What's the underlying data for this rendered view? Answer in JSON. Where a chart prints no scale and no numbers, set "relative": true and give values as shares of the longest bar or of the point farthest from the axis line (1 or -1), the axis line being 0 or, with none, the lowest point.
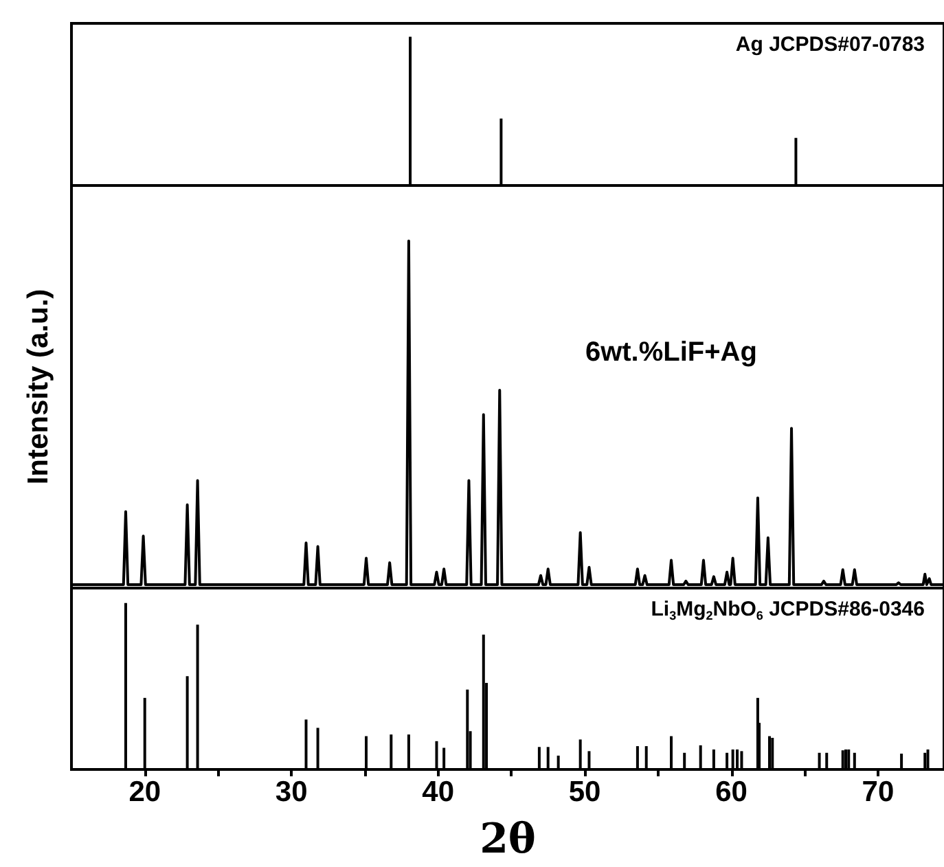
{
  "chart_data": [
    {
      "type": "bar",
      "relative": true,
      "xlim": [
        15,
        74.5
      ],
      "tick_labels": false,
      "series": [
        {
          "name": "Ag JCPDS#07-0783",
          "color": "#000000",
          "x": [
            38.1,
            44.3,
            64.4
          ],
          "values": [
            1.0,
            0.45,
            0.32
          ]
        }
      ]
    },
    {
      "type": "line",
      "relative": true,
      "xlim": [
        15,
        74.5
      ],
      "tick_labels": false,
      "ylabel": "Intensity (a.u.)",
      "marker": "none",
      "line_style": "solid",
      "series": [
        {
          "name": "6wt.%LiF+Ag",
          "color": "#000000",
          "x": [
            15,
            18.55,
            18.7,
            18.85,
            19.75,
            19.9,
            20.05,
            22.75,
            22.9,
            23.05,
            23.45,
            23.6,
            23.75,
            30.85,
            31.0,
            31.15,
            31.65,
            31.8,
            31.95,
            34.95,
            35.1,
            35.25,
            36.55,
            36.7,
            36.85,
            37.85,
            38.0,
            38.15,
            39.75,
            39.9,
            40.05,
            40.25,
            40.4,
            40.55,
            41.95,
            42.1,
            42.25,
            42.95,
            43.1,
            43.25,
            44.05,
            44.2,
            44.35,
            46.85,
            47.0,
            47.15,
            47.35,
            47.5,
            47.65,
            49.55,
            49.7,
            49.85,
            50.15,
            50.3,
            50.45,
            53.45,
            53.6,
            53.75,
            53.95,
            54.1,
            54.25,
            55.75,
            55.9,
            56.05,
            56.75,
            56.9,
            57.05,
            57.95,
            58.1,
            58.25,
            58.65,
            58.8,
            58.95,
            59.55,
            59.7,
            59.85,
            59.95,
            60.1,
            60.25,
            61.65,
            61.8,
            61.95,
            62.35,
            62.5,
            62.65,
            63.95,
            64.1,
            64.25,
            66.15,
            66.3,
            66.45,
            67.45,
            67.6,
            67.75,
            68.25,
            68.4,
            68.55,
            71.25,
            71.4,
            71.55,
            73.08,
            73.2,
            73.32,
            73.38,
            73.5,
            73.62,
            74.5
          ],
          "values": [
            0.01,
            0.01,
            0.22,
            0.01,
            0.01,
            0.15,
            0.01,
            0.01,
            0.24,
            0.01,
            0.01,
            0.31,
            0.01,
            0.01,
            0.13,
            0.01,
            0.01,
            0.12,
            0.01,
            0.01,
            0.086,
            0.01,
            0.01,
            0.073,
            0.01,
            0.01,
            1.0,
            0.01,
            0.01,
            0.046,
            0.01,
            0.01,
            0.055,
            0.01,
            0.01,
            0.31,
            0.01,
            0.01,
            0.5,
            0.01,
            0.01,
            0.57,
            0.01,
            0.01,
            0.036,
            0.01,
            0.01,
            0.055,
            0.01,
            0.01,
            0.16,
            0.01,
            0.01,
            0.06,
            0.01,
            0.01,
            0.055,
            0.01,
            0.01,
            0.036,
            0.01,
            0.01,
            0.08,
            0.01,
            0.01,
            0.02,
            0.01,
            0.01,
            0.08,
            0.01,
            0.01,
            0.033,
            0.01,
            0.01,
            0.046,
            0.01,
            0.01,
            0.086,
            0.01,
            0.01,
            0.26,
            0.01,
            0.01,
            0.145,
            0.01,
            0.01,
            0.46,
            0.01,
            0.01,
            0.02,
            0.01,
            0.01,
            0.053,
            0.01,
            0.01,
            0.053,
            0.01,
            0.01,
            0.015,
            0.01,
            0.01,
            0.04,
            0.01,
            0.01,
            0.027,
            0.01,
            0.01
          ]
        }
      ]
    },
    {
      "type": "bar",
      "relative": true,
      "xlim": [
        15,
        74.5
      ],
      "tick_labels": "x",
      "xlabel": "2θ",
      "xticks": [
        20,
        {
          "value": 25,
          "label": null
        },
        30,
        {
          "value": 35,
          "label": null
        },
        40,
        {
          "value": 45,
          "label": null
        },
        50,
        {
          "value": 55,
          "label": null
        },
        60,
        {
          "value": 65,
          "label": null
        },
        70
      ],
      "series": [
        {
          "name": "Li$_{3}$Mg$_{2}$NbO$_{6}$ JCPDS#86-0346",
          "color": "#000000",
          "x": [
            18.7,
            20.0,
            22.9,
            23.6,
            31.0,
            31.8,
            35.1,
            36.8,
            38.0,
            39.9,
            40.4,
            42.0,
            42.2,
            43.1,
            43.3,
            46.9,
            47.5,
            48.2,
            49.7,
            50.3,
            53.6,
            54.2,
            55.9,
            56.8,
            57.9,
            58.8,
            59.7,
            60.1,
            60.4,
            60.7,
            61.8,
            61.9,
            62.6,
            62.8,
            66.0,
            66.5,
            67.6,
            67.8,
            68.0,
            68.4,
            71.6,
            73.2,
            73.4
          ],
          "values": [
            1.0,
            0.43,
            0.56,
            0.87,
            0.3,
            0.25,
            0.2,
            0.21,
            0.21,
            0.17,
            0.13,
            0.48,
            0.23,
            0.81,
            0.52,
            0.135,
            0.135,
            0.083,
            0.18,
            0.11,
            0.14,
            0.14,
            0.2,
            0.1,
            0.145,
            0.12,
            0.1,
            0.12,
            0.12,
            0.11,
            0.43,
            0.28,
            0.2,
            0.19,
            0.1,
            0.1,
            0.115,
            0.12,
            0.12,
            0.1,
            0.095,
            0.1,
            0.12
          ]
        }
      ]
    }
  ]
}
